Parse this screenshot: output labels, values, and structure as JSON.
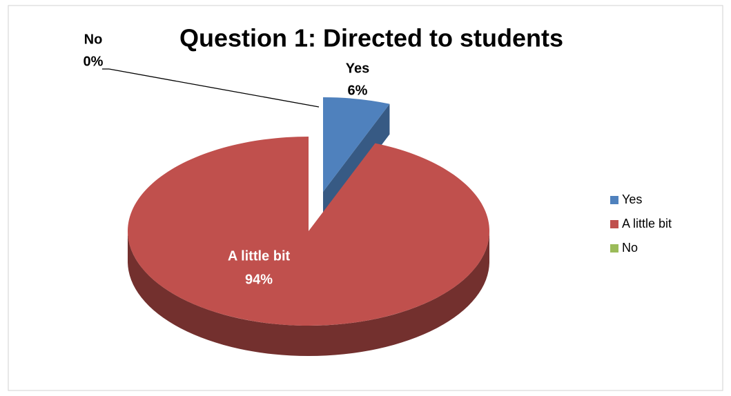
{
  "chart_data": {
    "type": "pie",
    "title": "Question 1: Directed to students",
    "categories": [
      "Yes",
      "A little bit",
      "No"
    ],
    "values": [
      6,
      94,
      0
    ],
    "value_labels": [
      "6%",
      "94%",
      "0%"
    ],
    "colors": [
      "#4f81bd",
      "#c0504d",
      "#9bbb59"
    ],
    "legend": "right"
  }
}
